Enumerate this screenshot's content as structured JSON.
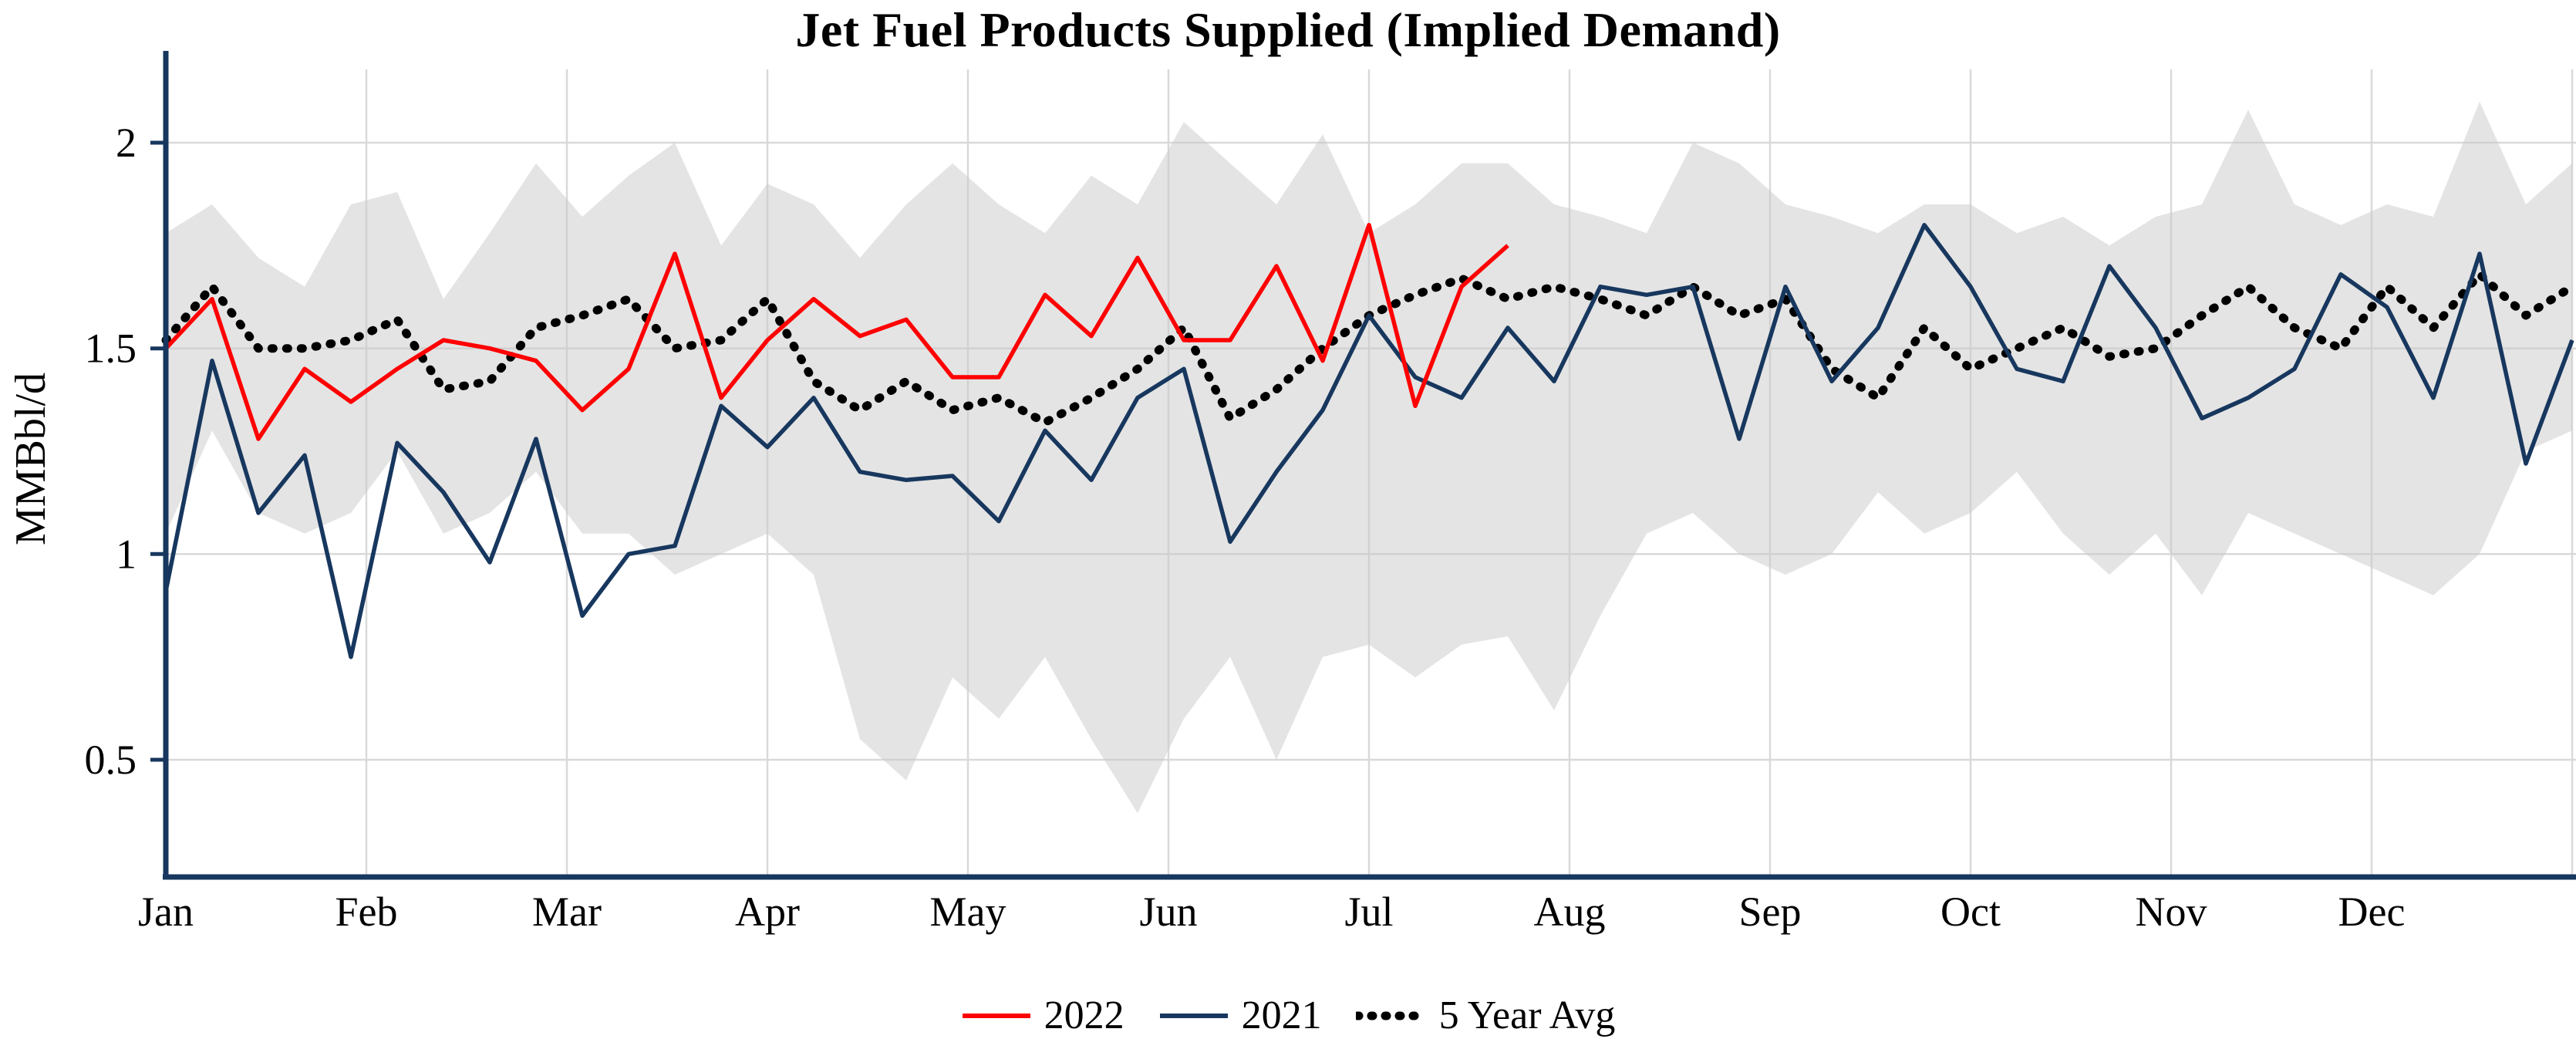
{
  "chart_data": {
    "type": "line",
    "title": "Jet Fuel Products Supplied (Implied Demand)",
    "ylabel": "MMBbl/d",
    "yticks": [
      0.5,
      1,
      1.5,
      2
    ],
    "ylim": [
      0.22,
      2.18
    ],
    "x_unit": "week-of-year",
    "months": [
      "Jan",
      "Feb",
      "Mar",
      "Apr",
      "May",
      "Jun",
      "Jul",
      "Aug",
      "Sep",
      "Oct",
      "Nov",
      "Dec"
    ],
    "grid": true,
    "legend_position": "bottom",
    "colors": {
      "red_2022": "#ff0000",
      "navy_2021": "#17375e",
      "avg_dotted": "#000000",
      "band": "#c9c9c9",
      "axis": "#17375e",
      "grid": "#d9d9d9"
    },
    "band": {
      "description": "5-year min-max range (shaded)",
      "upper": [
        1.78,
        1.85,
        1.72,
        1.65,
        1.85,
        1.88,
        1.62,
        1.78,
        1.95,
        1.82,
        1.92,
        2.0,
        1.75,
        1.9,
        1.85,
        1.72,
        1.85,
        1.95,
        1.85,
        1.78,
        1.92,
        1.85,
        2.05,
        1.95,
        1.85,
        2.02,
        1.78,
        1.85,
        1.95,
        1.95,
        1.85,
        1.82,
        1.78,
        2.0,
        1.95,
        1.85,
        1.82,
        1.78,
        1.85,
        1.85,
        1.78,
        1.82,
        1.75,
        1.82,
        1.85,
        2.08,
        1.85,
        1.8,
        1.85,
        1.82,
        2.1,
        1.85,
        1.95
      ],
      "lower": [
        1.05,
        1.3,
        1.1,
        1.05,
        1.1,
        1.25,
        1.05,
        1.1,
        1.2,
        1.05,
        1.05,
        0.95,
        1.0,
        1.05,
        0.95,
        0.55,
        0.45,
        0.7,
        0.6,
        0.75,
        0.55,
        0.37,
        0.6,
        0.75,
        0.5,
        0.75,
        0.78,
        0.7,
        0.78,
        0.8,
        0.62,
        0.85,
        1.05,
        1.1,
        1.0,
        0.95,
        1.0,
        1.15,
        1.05,
        1.1,
        1.2,
        1.05,
        0.95,
        1.05,
        0.9,
        1.1,
        1.05,
        1.0,
        0.95,
        0.9,
        1.0,
        1.25,
        1.3
      ]
    },
    "series": [
      {
        "name": "2022",
        "color_key": "red_2022",
        "color": "#ff0000",
        "style": "solid",
        "start_week": 0,
        "values": [
          1.5,
          1.62,
          1.28,
          1.45,
          1.37,
          1.45,
          1.52,
          1.5,
          1.47,
          1.35,
          1.45,
          1.73,
          1.38,
          1.52,
          1.62,
          1.53,
          1.57,
          1.43,
          1.43,
          1.63,
          1.53,
          1.72,
          1.52,
          1.52,
          1.7,
          1.47,
          1.8,
          1.36,
          1.65,
          1.75
        ]
      },
      {
        "name": "2021",
        "color_key": "navy_2021",
        "color": "#17375e",
        "style": "solid",
        "start_week": 0,
        "values": [
          0.91,
          1.47,
          1.1,
          1.24,
          0.75,
          1.27,
          1.15,
          0.98,
          1.28,
          0.85,
          1.0,
          1.02,
          1.36,
          1.26,
          1.38,
          1.2,
          1.18,
          1.19,
          1.08,
          1.3,
          1.18,
          1.38,
          1.45,
          1.03,
          1.2,
          1.35,
          1.58,
          1.43,
          1.38,
          1.55,
          1.42,
          1.65,
          1.63,
          1.65,
          1.28,
          1.65,
          1.42,
          1.55,
          1.8,
          1.65,
          1.45,
          1.42,
          1.7,
          1.55,
          1.33,
          1.38,
          1.45,
          1.68,
          1.6,
          1.38,
          1.73,
          1.22,
          1.52
        ]
      },
      {
        "name": "5 Year Avg",
        "color_key": "avg_dotted",
        "color": "#000000",
        "style": "dotted",
        "start_week": 0,
        "values": [
          1.52,
          1.65,
          1.5,
          1.5,
          1.52,
          1.57,
          1.4,
          1.42,
          1.55,
          1.58,
          1.62,
          1.5,
          1.52,
          1.62,
          1.42,
          1.35,
          1.42,
          1.35,
          1.38,
          1.32,
          1.38,
          1.45,
          1.55,
          1.33,
          1.4,
          1.5,
          1.58,
          1.63,
          1.67,
          1.62,
          1.65,
          1.62,
          1.58,
          1.65,
          1.58,
          1.62,
          1.45,
          1.38,
          1.55,
          1.45,
          1.5,
          1.55,
          1.48,
          1.5,
          1.58,
          1.65,
          1.55,
          1.5,
          1.65,
          1.55,
          1.68,
          1.58,
          1.65
        ]
      }
    ]
  }
}
